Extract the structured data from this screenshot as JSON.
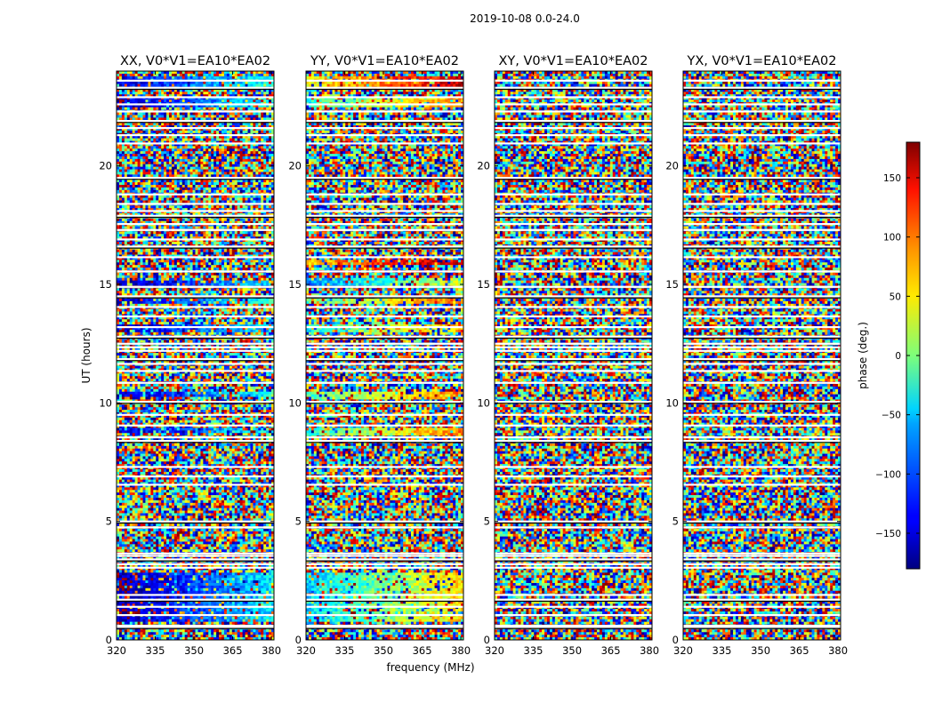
{
  "figure": {
    "title": "2019-10-08 0.0-24.0"
  },
  "chart_data": {
    "type": "heatmap",
    "description_quantity": "visibility phase vs frequency and time",
    "xlabel": "frequency (MHz)",
    "ylabel": "UT (hours)",
    "xlim": [
      320,
      381
    ],
    "ylim": [
      0,
      24
    ],
    "xticks": [
      320,
      335,
      350,
      365,
      380
    ],
    "yticks": [
      0,
      5,
      10,
      15,
      20
    ],
    "panels": [
      {
        "title": "XX, V0*V1=EA10*EA02",
        "polarization": "XX",
        "coherent_bands": [
          [
            0.8,
            2.8,
            -170
          ],
          [
            8.7,
            8.9,
            -160
          ],
          [
            10.3,
            10.5,
            -155
          ],
          [
            13.0,
            13.3,
            -165
          ],
          [
            14.2,
            14.4,
            -150
          ],
          [
            15.0,
            15.2,
            -170
          ],
          [
            22.5,
            22.9,
            -160
          ],
          [
            23.2,
            23.8,
            -150
          ]
        ]
      },
      {
        "title": "YY, V0*V1=EA10*EA02",
        "polarization": "YY",
        "coherent_bands": [
          [
            0.8,
            2.8,
            -60
          ],
          [
            8.6,
            8.9,
            -30
          ],
          [
            10.2,
            10.5,
            -20
          ],
          [
            13.0,
            13.3,
            -40
          ],
          [
            14.2,
            14.4,
            -20
          ],
          [
            15.0,
            15.3,
            -90
          ],
          [
            15.8,
            16.0,
            60
          ],
          [
            22.5,
            22.9,
            -30
          ],
          [
            23.2,
            23.8,
            40
          ]
        ]
      },
      {
        "title": "XY, V0*V1=EA10*EA02",
        "polarization": "XY",
        "coherent_bands": []
      },
      {
        "title": "YX, V0*V1=EA10*EA02",
        "polarization": "YX",
        "coherent_bands": []
      }
    ],
    "flagged_rows_ut": [
      0.55,
      0.6,
      1.05,
      1.4,
      1.7,
      1.9,
      3.05,
      3.2,
      3.4,
      3.55,
      3.65,
      4.75,
      5.0,
      6.55,
      6.9,
      7.3,
      8.4,
      8.55,
      9.05,
      9.5,
      10.05,
      10.85,
      11.35,
      11.65,
      11.85,
      12.2,
      12.35,
      12.5,
      12.8,
      13.2,
      13.65,
      14.05,
      14.5,
      14.9,
      15.55,
      16.15,
      16.6,
      16.9,
      17.3,
      17.55,
      17.9,
      18.1,
      18.4,
      18.8,
      19.5,
      20.95,
      21.3,
      21.6,
      21.9,
      22.3,
      22.6,
      22.9,
      23.3,
      23.6
    ],
    "colorbar": {
      "label": "phase (deg.)",
      "range": [
        -180,
        180
      ],
      "ticks": [
        -150,
        -100,
        -50,
        0,
        50,
        100,
        150
      ],
      "tick_labels": [
        "−150",
        "−100",
        "−50",
        "0",
        "50",
        "100",
        "150"
      ],
      "colormap": "jet"
    }
  }
}
